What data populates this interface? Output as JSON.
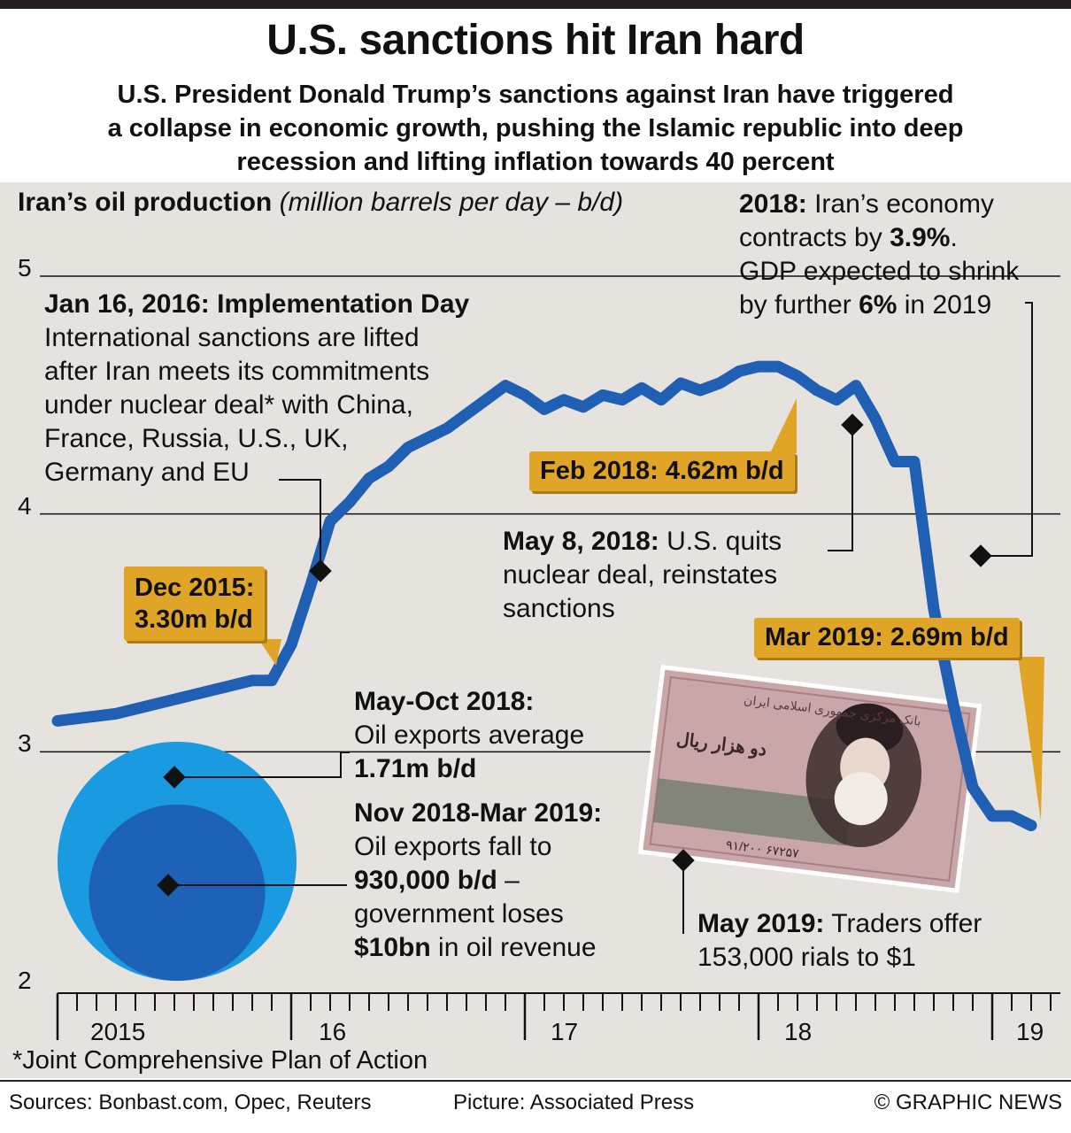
{
  "header": {
    "title": "U.S. sanctions hit Iran hard",
    "subtitle_lines": [
      "U.S. President Donald Trump’s sanctions against Iran have triggered",
      "a collapse in economic growth, pushing the Islamic republic into deep",
      "recession and lifting inflation towards 40 percent"
    ]
  },
  "chart_data": {
    "type": "line",
    "title": "Iran’s oil production",
    "title_units": "(million barrels per day – b/d)",
    "ylim": [
      2,
      5
    ],
    "yticks": [
      "5",
      "4",
      "3",
      "2"
    ],
    "xticks": [
      "2015",
      "16",
      "17",
      "18",
      "19"
    ],
    "grid": true,
    "series": [
      {
        "name": "Iran’s oil production",
        "color": "#1f5fb4",
        "x": [
          "2015-01",
          "2015-02",
          "2015-03",
          "2015-04",
          "2015-05",
          "2015-06",
          "2015-07",
          "2015-08",
          "2015-09",
          "2015-10",
          "2015-11",
          "2015-12",
          "2016-01",
          "2016-02",
          "2016-03",
          "2016-04",
          "2016-05",
          "2016-06",
          "2016-07",
          "2016-08",
          "2016-09",
          "2016-10",
          "2016-11",
          "2016-12",
          "2017-01",
          "2017-02",
          "2017-03",
          "2017-04",
          "2017-05",
          "2017-06",
          "2017-07",
          "2017-08",
          "2017-09",
          "2017-10",
          "2017-11",
          "2017-12",
          "2018-01",
          "2018-02",
          "2018-03",
          "2018-04",
          "2018-05",
          "2018-06",
          "2018-07",
          "2018-08",
          "2018-09",
          "2018-10",
          "2018-11",
          "2018-12",
          "2019-01",
          "2019-02",
          "2019-03"
        ],
        "values": [
          3.13,
          3.14,
          3.15,
          3.16,
          3.18,
          3.2,
          3.22,
          3.24,
          3.26,
          3.28,
          3.3,
          3.3,
          3.45,
          3.7,
          3.97,
          4.05,
          4.15,
          4.2,
          4.28,
          4.32,
          4.36,
          4.42,
          4.48,
          4.54,
          4.5,
          4.44,
          4.48,
          4.45,
          4.5,
          4.48,
          4.53,
          4.48,
          4.55,
          4.52,
          4.55,
          4.6,
          4.62,
          4.62,
          4.58,
          4.52,
          4.48,
          4.54,
          4.4,
          4.22,
          4.22,
          3.6,
          3.2,
          2.85,
          2.73,
          2.73,
          2.69
        ]
      }
    ],
    "annotations": {
      "implementation_day": {
        "head": "Jan 16, 2016: Implementation Day",
        "lines": [
          "International sanctions are lifted",
          "after Iran meets its commitments",
          "under nuclear deal* with China,",
          "France, Russia, U.S., UK,",
          "Germany and EU"
        ]
      },
      "economy": {
        "l1_bold": "2018:",
        "l1_rest": " Iran’s economy",
        "l2_pre": "contracts by ",
        "l2_bold": "3.9%",
        "l2_post": ".",
        "l3": "GDP expected to shrink",
        "l4_pre": "by further ",
        "l4_bold": "6%",
        "l4_post": " in 2019"
      },
      "callout_dec2015": [
        "Dec 2015:",
        "3.30m b/d"
      ],
      "callout_feb2018": "Feb 2018: 4.62m b/d",
      "callout_mar2019": "Mar 2019: 2.69m b/d",
      "may2018": {
        "bold": "May 8, 2018:",
        "rest": " U.S. quits",
        "l2": "nuclear deal, reinstates",
        "l3": "sanctions"
      },
      "exports_high": {
        "head": "May-Oct 2018:",
        "l2": "Oil exports average",
        "l3": "1.71m b/d"
      },
      "exports_low": {
        "head": "Nov 2018-Mar 2019:",
        "l2": "Oil exports fall to",
        "l3_bold": "930,000 b/d",
        "l3_rest": " –",
        "l4": "government loses",
        "l5_bold": "$10bn",
        "l5_rest": " in oil revenue"
      },
      "rial": {
        "bold": "May 2019:",
        "rest": " Traders offer",
        "l2": "153,000 rials to $1"
      }
    },
    "bubbles": [
      {
        "label": "May-Oct 2018",
        "value": 1.71,
        "color": "#1a9ae0"
      },
      {
        "label": "Nov 2018-Mar 2019",
        "value": 0.93,
        "color": "#1d62b6"
      }
    ]
  },
  "banknote": {
    "text_top": "بانک مرکزی جمهوری اسلامی ایران",
    "text_value": "دو هزار ریال",
    "serial": "۹۱/۲۰۰ ۶۷۲۵۷"
  },
  "footer": {
    "footnote": "*Joint Comprehensive Plan of Action",
    "sources": "Sources:  Bonbast.com, Opec, Reuters",
    "picture": "Picture: Associated Press",
    "credit": "© GRAPHIC NEWS"
  }
}
